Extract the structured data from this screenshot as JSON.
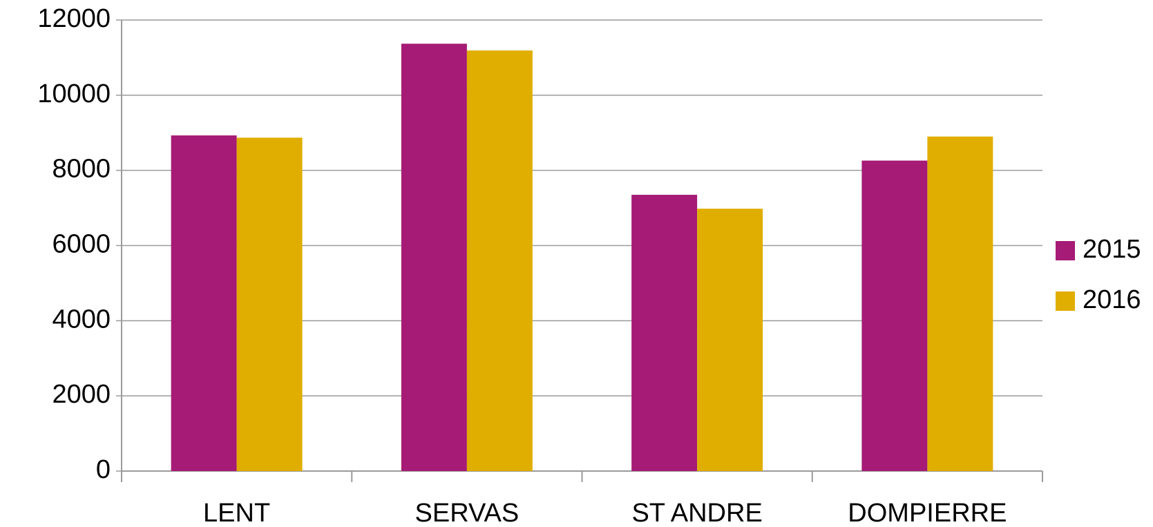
{
  "chart_data": {
    "type": "bar",
    "categories": [
      "LENT",
      "SERVAS",
      "ST ANDRE",
      "DOMPIERRE"
    ],
    "series": [
      {
        "name": "2015",
        "color": "#a51b75",
        "values": [
          8930,
          11370,
          7350,
          8260
        ]
      },
      {
        "name": "2016",
        "color": "#e0ae00",
        "values": [
          8870,
          11190,
          6980,
          8900
        ]
      }
    ],
    "ylim": [
      0,
      12000
    ],
    "yticks": [
      0,
      2000,
      4000,
      6000,
      8000,
      10000,
      12000
    ],
    "grid": true,
    "legend": "right"
  }
}
